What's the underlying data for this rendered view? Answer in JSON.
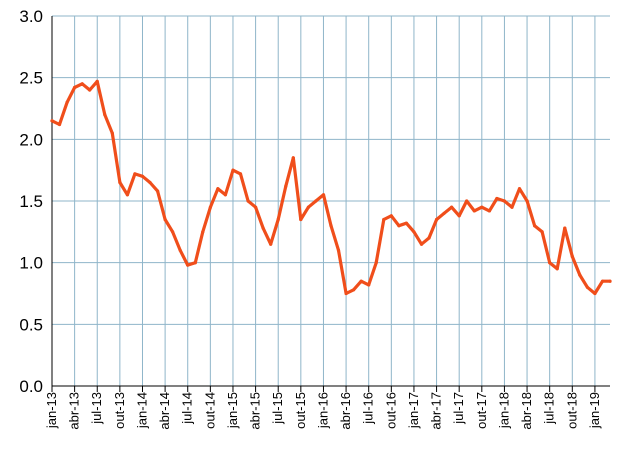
{
  "chart_data": {
    "type": "line",
    "title": "",
    "xlabel": "",
    "ylabel": "",
    "ylim": [
      0,
      3.0
    ],
    "y_ticks": [
      "0.0",
      "0.5",
      "1.0",
      "1.5",
      "2.0",
      "2.5",
      "3.0"
    ],
    "grid": true,
    "legend": "none",
    "x_tick_labels": [
      "jan-13",
      "abr-13",
      "jul-13",
      "out-13",
      "jan-14",
      "abr-14",
      "jul-14",
      "out-14",
      "jan-15",
      "abr-15",
      "jul-15",
      "out-15",
      "jan-16",
      "abr-16",
      "jul-16",
      "out-16",
      "jan-17",
      "abr-17",
      "jul-17",
      "out-17",
      "jan-18",
      "abr-18",
      "jul-18",
      "out-18",
      "jan-19"
    ],
    "colors": {
      "line": "#f04e1b",
      "grid": "#8fb5c9",
      "axis": "#000000"
    },
    "series": [
      {
        "x": [
          "2013-01",
          "2013-02",
          "2013-03",
          "2013-04",
          "2013-05",
          "2013-06",
          "2013-07",
          "2013-08",
          "2013-09",
          "2013-10",
          "2013-11",
          "2013-12",
          "2014-01",
          "2014-02",
          "2014-03",
          "2014-04",
          "2014-05",
          "2014-06",
          "2014-07",
          "2014-08",
          "2014-09",
          "2014-10",
          "2014-11",
          "2014-12",
          "2015-01",
          "2015-02",
          "2015-03",
          "2015-04",
          "2015-05",
          "2015-06",
          "2015-07",
          "2015-08",
          "2015-09",
          "2015-10",
          "2015-11",
          "2015-12",
          "2016-01",
          "2016-02",
          "2016-03",
          "2016-04",
          "2016-05",
          "2016-06",
          "2016-07",
          "2016-08",
          "2016-09",
          "2016-10",
          "2016-11",
          "2016-12",
          "2017-01",
          "2017-02",
          "2017-03",
          "2017-04",
          "2017-05",
          "2017-06",
          "2017-07",
          "2017-08",
          "2017-09",
          "2017-10",
          "2017-11",
          "2017-12",
          "2018-01",
          "2018-02",
          "2018-03",
          "2018-04",
          "2018-05",
          "2018-06",
          "2018-07",
          "2018-08",
          "2018-09",
          "2018-10",
          "2018-11",
          "2018-12",
          "2019-01",
          "2019-02",
          "2019-03"
        ],
        "values": [
          2.15,
          2.12,
          2.3,
          2.42,
          2.45,
          2.4,
          2.47,
          2.2,
          2.05,
          1.65,
          1.55,
          1.72,
          1.7,
          1.65,
          1.58,
          1.35,
          1.25,
          1.1,
          0.98,
          1.0,
          1.25,
          1.45,
          1.6,
          1.55,
          1.75,
          1.72,
          1.5,
          1.45,
          1.28,
          1.15,
          1.35,
          1.62,
          1.85,
          1.35,
          1.45,
          1.5,
          1.55,
          1.3,
          1.1,
          0.75,
          0.78,
          0.85,
          0.82,
          1.0,
          1.35,
          1.38,
          1.3,
          1.32,
          1.25,
          1.15,
          1.2,
          1.35,
          1.4,
          1.45,
          1.38,
          1.5,
          1.42,
          1.45,
          1.42,
          1.52,
          1.5,
          1.45,
          1.6,
          1.5,
          1.3,
          1.25,
          1.0,
          0.95,
          1.28,
          1.05,
          0.9,
          0.8,
          0.75,
          0.85,
          0.85
        ]
      }
    ]
  }
}
